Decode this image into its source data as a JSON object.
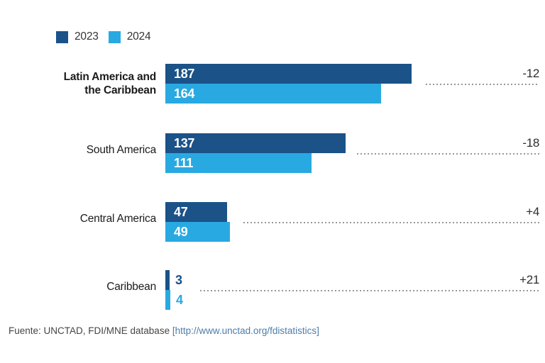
{
  "chart_data": {
    "type": "bar",
    "orientation": "horizontal",
    "categories": [
      "Latin America and the Caribbean",
      "South America",
      "Central America",
      "Caribbean"
    ],
    "series": [
      {
        "name": "2023",
        "color": "#1b5288",
        "values": [
          187,
          137,
          47,
          3
        ]
      },
      {
        "name": "2024",
        "color": "#29a9e1",
        "values": [
          164,
          111,
          49,
          4
        ]
      }
    ],
    "change_labels": [
      "-12",
      "-18",
      "+4",
      "+21"
    ],
    "xlim": [
      0,
      200
    ],
    "grid": false,
    "legend_position": "top-left",
    "source": "Fuente: UNCTAD, FDI/MNE database [http://www.unctad.org/fdistatistics]"
  },
  "legend": {
    "items": [
      {
        "label": "2023",
        "color": "#1b5288"
      },
      {
        "label": "2024",
        "color": "#29a9e1"
      }
    ]
  },
  "groups": [
    {
      "label_lines": [
        "Latin America and",
        "the Caribbean"
      ],
      "bold": true,
      "v2023": "187",
      "v2024": "164",
      "change": "-12",
      "values_outside": false
    },
    {
      "label_lines": [
        "South America"
      ],
      "bold": false,
      "v2023": "137",
      "v2024": "111",
      "change": "-18",
      "values_outside": false
    },
    {
      "label_lines": [
        "Central America"
      ],
      "bold": false,
      "v2023": "47",
      "v2024": "49",
      "change": "+4",
      "values_outside": false
    },
    {
      "label_lines": [
        "Caribbean"
      ],
      "bold": false,
      "v2023": "3",
      "v2024": "4",
      "change": "+21",
      "values_outside": true
    }
  ],
  "footer": {
    "prefix": "Fuente: UNCTAD, FDI/MNE database ",
    "link": "[http://www.unctad.org/fdistatistics]"
  }
}
